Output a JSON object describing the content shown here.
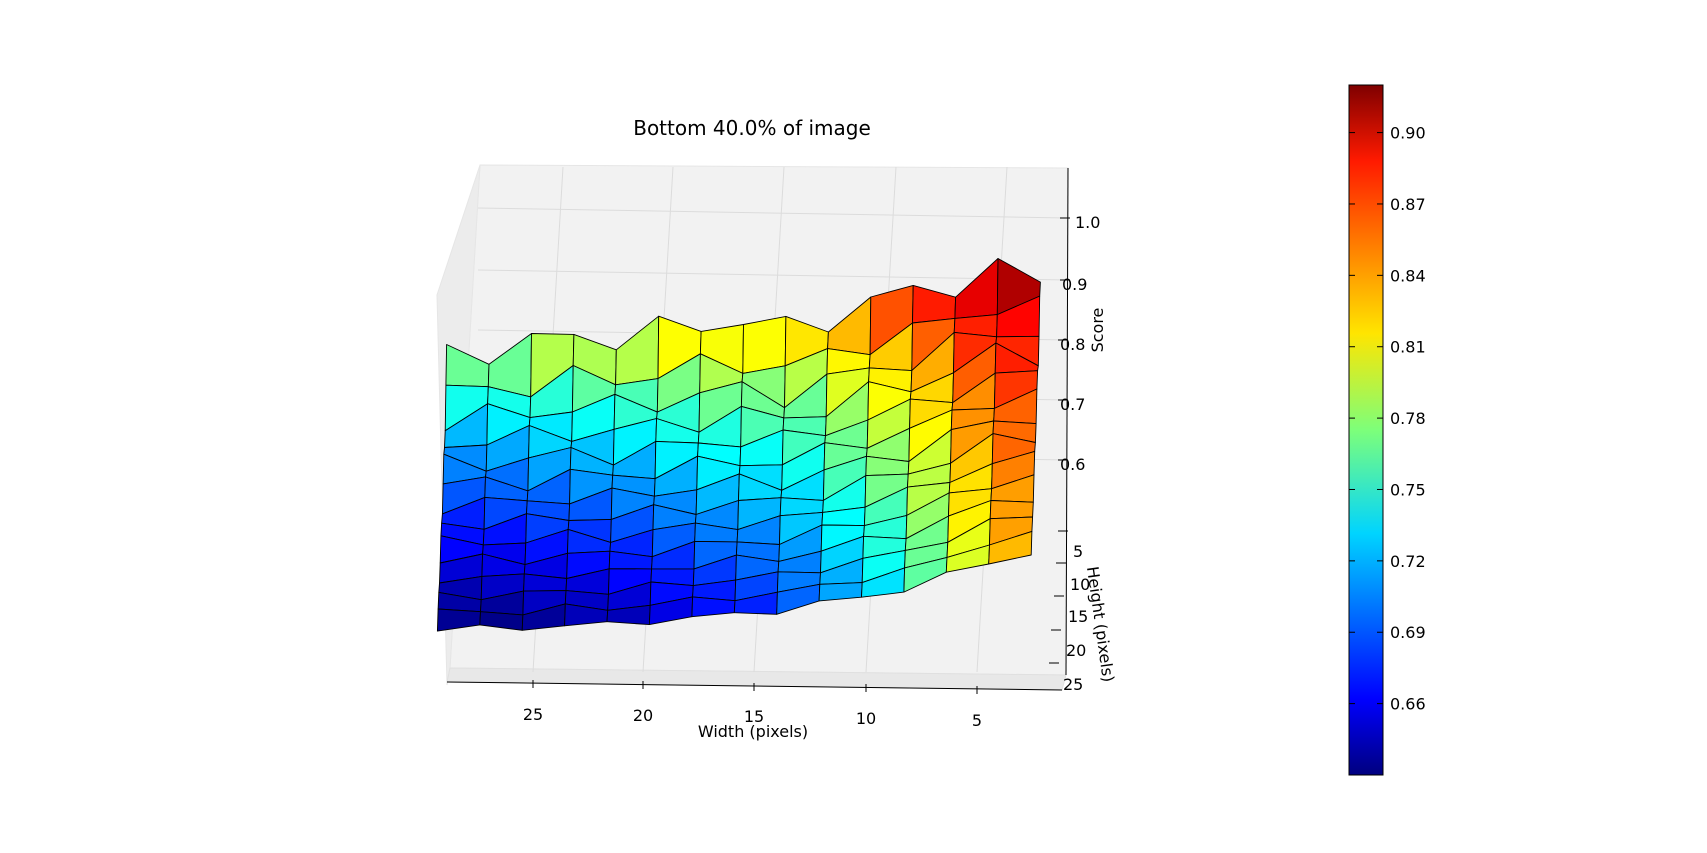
{
  "chart_data": {
    "type": "surface3d",
    "title": "Bottom 40.0% of image",
    "xlabel": "Width (pixels)",
    "ylabel": "Height (pixels)",
    "zlabel": "Score",
    "x_ticks": [
      "25",
      "20",
      "15",
      "10",
      "5"
    ],
    "y_ticks": [
      "5",
      "10",
      "15",
      "20",
      "25"
    ],
    "z_ticks": [
      "0.6",
      "0.7",
      "0.8",
      "0.9",
      "1.0"
    ],
    "xlim": [
      0,
      29
    ],
    "ylim": [
      0,
      27
    ],
    "zlim": [
      0.5,
      1.05
    ],
    "colormap": "jet",
    "colorbar": {
      "range": [
        0.63,
        0.92
      ],
      "ticks": [
        "0.66",
        "0.69",
        "0.72",
        "0.75",
        "0.78",
        "0.81",
        "0.84",
        "0.87",
        "0.90"
      ]
    },
    "grid": true,
    "surface_profile": {
      "x_width": [
        1,
        3,
        5,
        7,
        9,
        11,
        13,
        15,
        17,
        19,
        21,
        23,
        25,
        27,
        29
      ],
      "back_row_score": [
        0.9,
        0.92,
        0.9,
        0.88,
        0.87,
        0.84,
        0.82,
        0.84,
        0.83,
        0.82,
        0.81,
        0.81,
        0.8,
        0.79,
        0.78
      ],
      "front_row_score": [
        0.84,
        0.82,
        0.78,
        0.74,
        0.72,
        0.7,
        0.68,
        0.67,
        0.66,
        0.65,
        0.64,
        0.64,
        0.63,
        0.63,
        0.63
      ]
    }
  }
}
